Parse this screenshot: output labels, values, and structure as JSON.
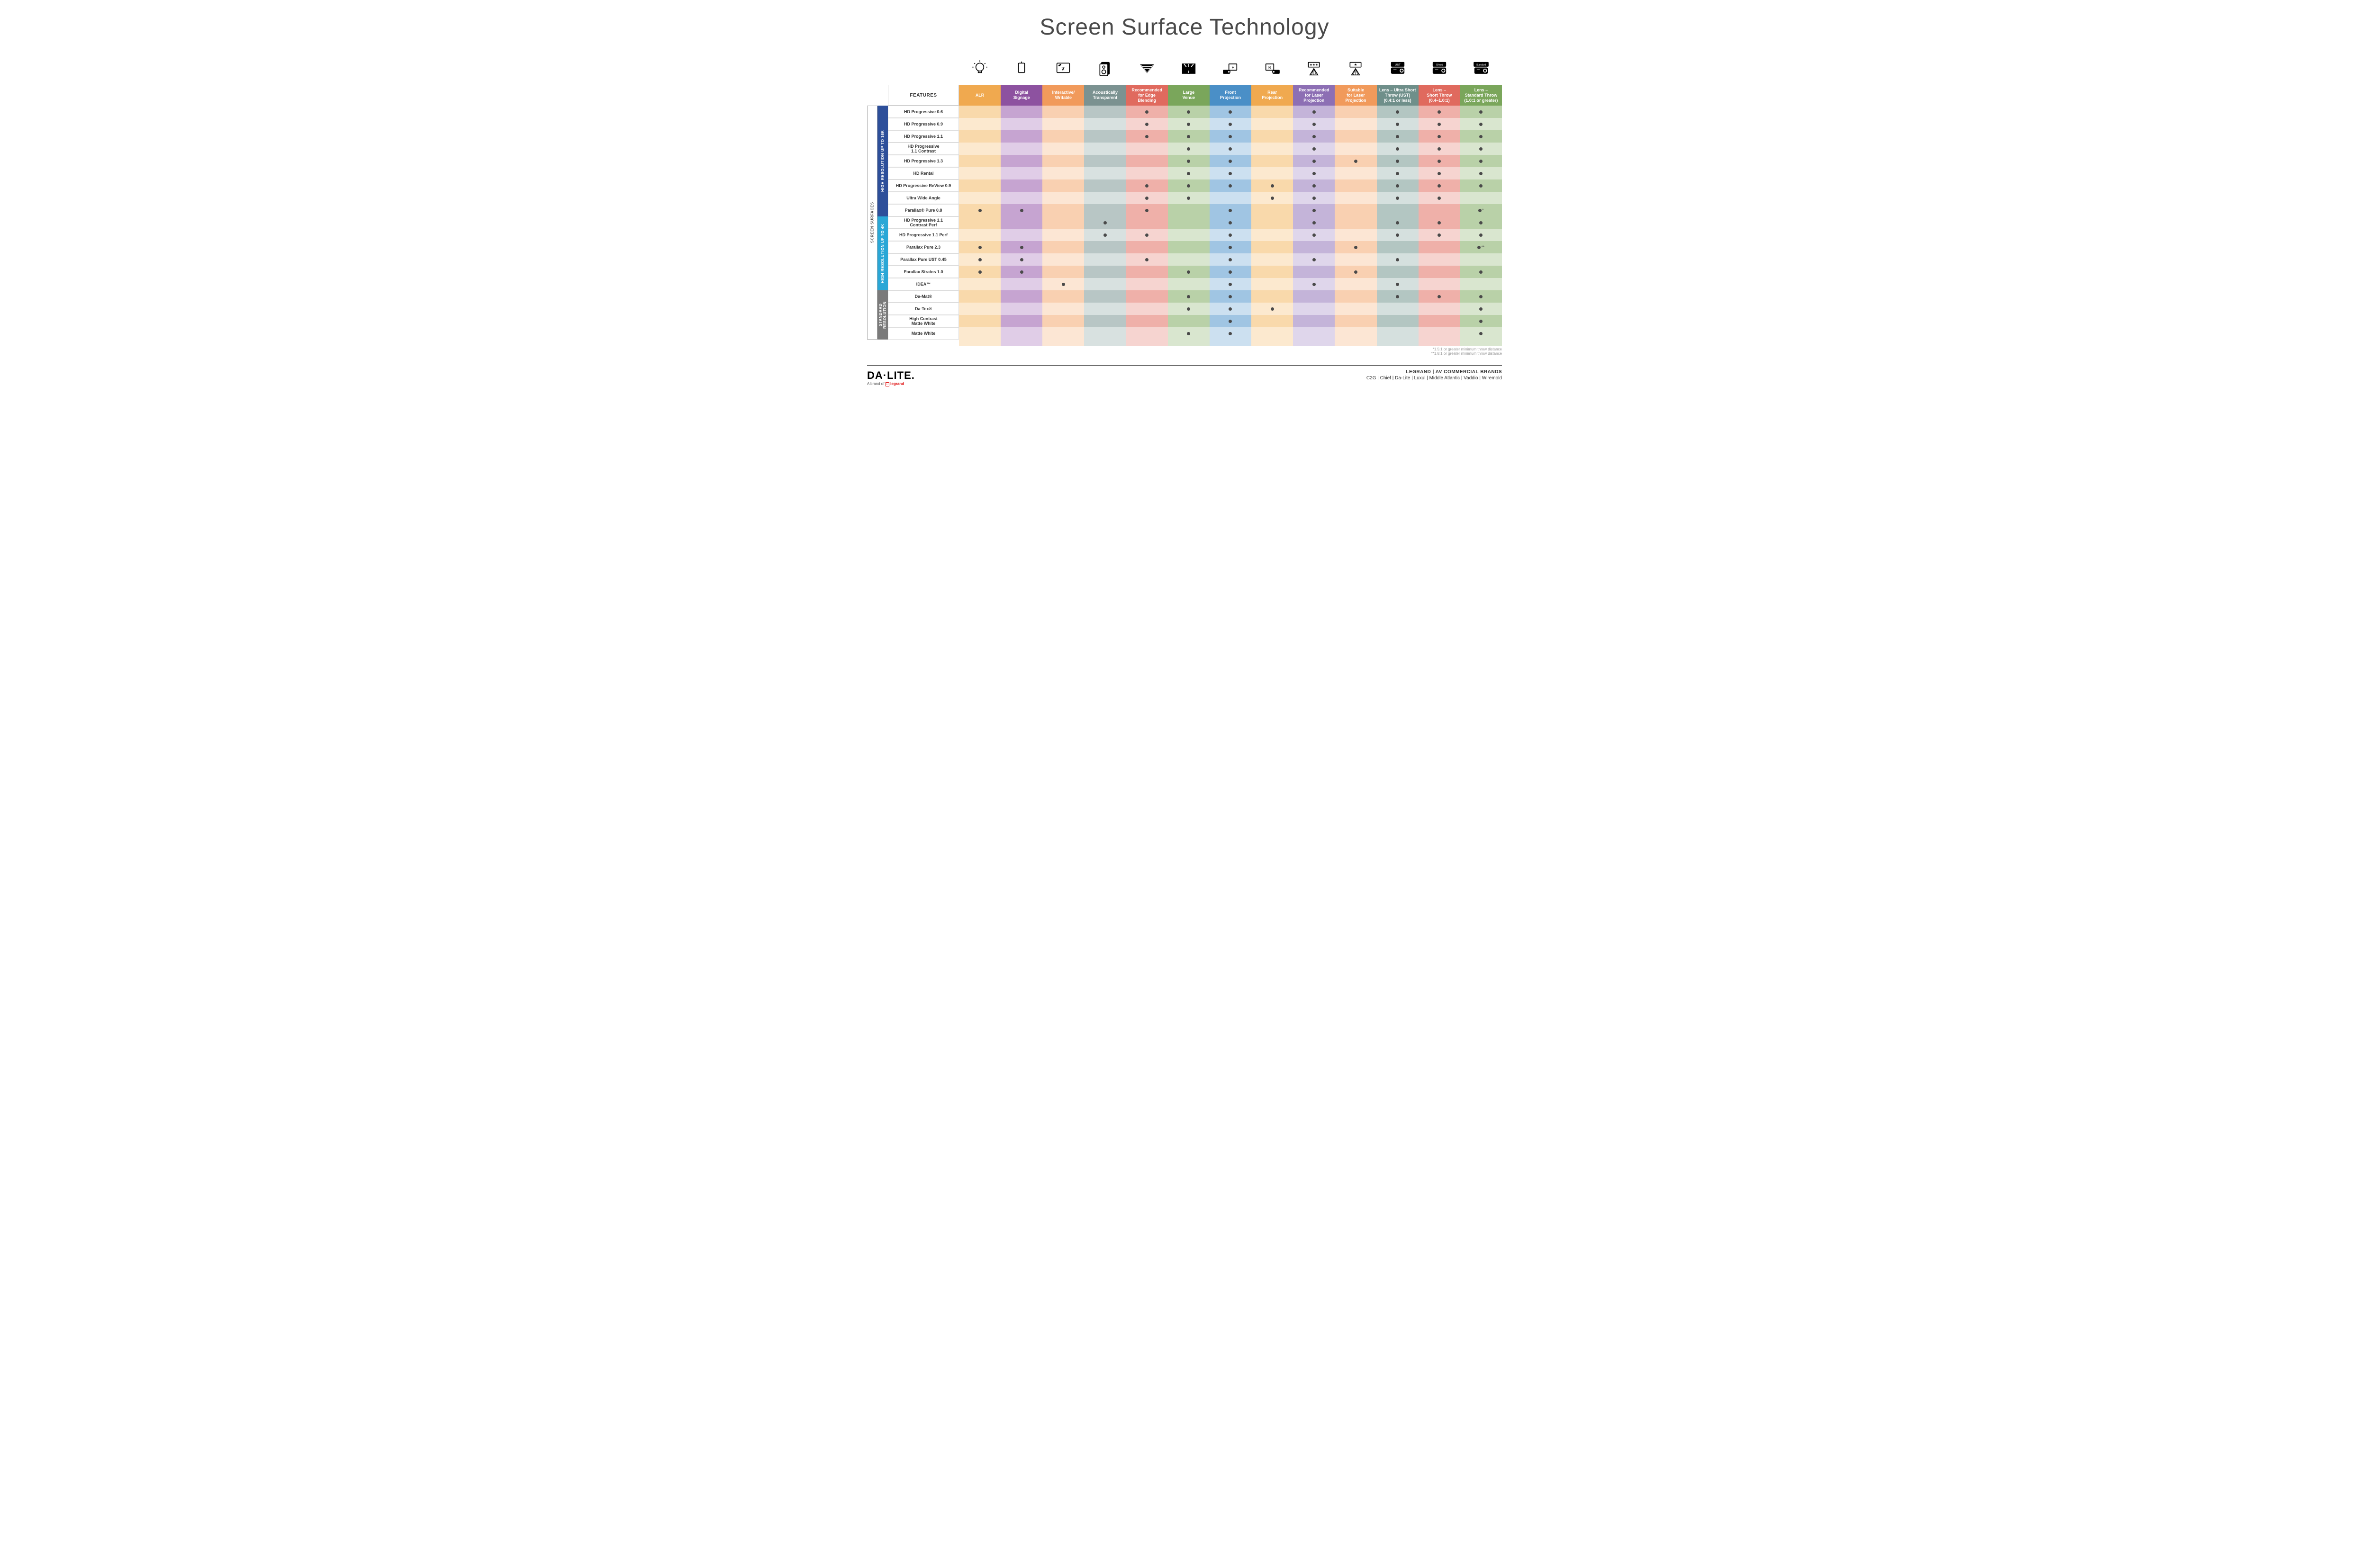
{
  "title": "Screen Surface Technology",
  "features_label": "FEATURES",
  "columns": [
    {
      "id": "alr",
      "label": "ALR",
      "color": "#f0a94f",
      "light": "#f9d9ab",
      "lighter": "#fce9cf"
    },
    {
      "id": "signage",
      "label": "Digital\nSignage",
      "color": "#8d52a0",
      "light": "#c6a4d1",
      "lighter": "#e0cde7"
    },
    {
      "id": "interactive",
      "label": "Interactive/\nWritable",
      "color": "#f19a5b",
      "light": "#f9d0b1",
      "lighter": "#fce6d4"
    },
    {
      "id": "acoustic",
      "label": "Acoustically\nTransparent",
      "color": "#7b9291",
      "light": "#b8c6c5",
      "lighter": "#d8e1e0"
    },
    {
      "id": "edge",
      "label": "Recommended\nfor Edge\nBlending",
      "color": "#e06a5e",
      "light": "#efb0a9",
      "lighter": "#f6d4d0"
    },
    {
      "id": "large",
      "label": "Large\nVenue",
      "color": "#7aa65b",
      "light": "#b9d1a8",
      "lighter": "#d9e6cf"
    },
    {
      "id": "front",
      "label": "Front\nProjection",
      "color": "#4a8fc7",
      "light": "#a0c5e3",
      "lighter": "#cce0f0"
    },
    {
      "id": "rear",
      "label": "Rear\nProjection",
      "color": "#f0a94f",
      "light": "#f9d9ab",
      "lighter": "#fce9cf"
    },
    {
      "id": "reclaser",
      "label": "Recommended\nfor Laser\nProjection",
      "color": "#8d6fb4",
      "light": "#c4b4d9",
      "lighter": "#dfd6eb"
    },
    {
      "id": "suitlaser",
      "label": "Suitable\nfor Laser\nProjection",
      "color": "#f19a5b",
      "light": "#f9d0b1",
      "lighter": "#fce6d4"
    },
    {
      "id": "ust",
      "label": "Lens – Ultra Short\nThrow (UST)\n(0.4:1 or less)",
      "color": "#6f8f8a",
      "light": "#b3c6c2",
      "lighter": "#d5e0de"
    },
    {
      "id": "short",
      "label": "Lens –\nShort Throw\n(0.4–1.0:1)",
      "color": "#e06a5e",
      "light": "#efb0a9",
      "lighter": "#f6d4d0"
    },
    {
      "id": "std",
      "label": "Lens –\nStandard Throw\n(1.0:1 or greater)",
      "color": "#7aa65b",
      "light": "#b9d1a8",
      "lighter": "#d9e6cf"
    }
  ],
  "side_outer": {
    "label": "SCREEN SURFACES",
    "color": "#ffffff",
    "text": "#555",
    "border": "#aaa"
  },
  "groups": [
    {
      "id": "g16k",
      "label": "HIGH RESOLUTION UP TO 16K",
      "color": "#2d4f9a",
      "rows": [
        {
          "name": "HD Progressive 0.6",
          "marks": {
            "edge": "•",
            "large": "•",
            "front": "•",
            "reclaser": "•",
            "ust": "•",
            "short": "•",
            "std": "•"
          }
        },
        {
          "name": "HD Progressive 0.9",
          "marks": {
            "edge": "•",
            "large": "•",
            "front": "•",
            "reclaser": "•",
            "ust": "•",
            "short": "•",
            "std": "•"
          }
        },
        {
          "name": "HD Progressive 1.1",
          "marks": {
            "edge": "•",
            "large": "•",
            "front": "•",
            "reclaser": "•",
            "ust": "•",
            "short": "•",
            "std": "•"
          }
        },
        {
          "name": "HD Progressive\n1.1 Contrast",
          "marks": {
            "large": "•",
            "front": "•",
            "reclaser": "•",
            "ust": "•",
            "short": "•",
            "std": "•"
          }
        },
        {
          "name": "HD Progressive 1.3",
          "marks": {
            "large": "•",
            "front": "•",
            "reclaser": "•",
            "suitlaser": "•",
            "ust": "•",
            "short": "•",
            "std": "•"
          }
        },
        {
          "name": "HD Rental",
          "marks": {
            "large": "•",
            "front": "•",
            "reclaser": "•",
            "ust": "•",
            "short": "•",
            "std": "•"
          }
        },
        {
          "name": "HD Progressive ReView 0.9",
          "marks": {
            "edge": "•",
            "large": "•",
            "front": "•",
            "rear": "•",
            "reclaser": "•",
            "ust": "•",
            "short": "•",
            "std": "•"
          }
        },
        {
          "name": "Ultra Wide Angle",
          "marks": {
            "edge": "•",
            "large": "•",
            "rear": "•",
            "reclaser": "•",
            "ust": "•",
            "short": "•"
          }
        },
        {
          "name": "Parallax® Pure 0.8",
          "marks": {
            "alr": "•",
            "signage": "•",
            "edge": "•",
            "front": "•",
            "reclaser": "•",
            "std": "•*"
          }
        }
      ]
    },
    {
      "id": "g4k",
      "label": "HIGH RESOLUTION UP TO 4K",
      "color": "#2aa7d6",
      "rows": [
        {
          "name": "HD Progressive 1.1\nContrast Perf",
          "marks": {
            "acoustic": "•",
            "front": "•",
            "reclaser": "•",
            "ust": "•",
            "short": "•",
            "std": "•"
          }
        },
        {
          "name": "HD Progressive 1.1 Perf",
          "marks": {
            "acoustic": "•",
            "edge": "•",
            "front": "•",
            "reclaser": "•",
            "ust": "•",
            "short": "•",
            "std": "•"
          }
        },
        {
          "name": "Parallax Pure 2.3",
          "marks": {
            "alr": "•",
            "signage": "•",
            "front": "•",
            "suitlaser": "•",
            "std": "•**"
          }
        },
        {
          "name": "Parallax Pure UST 0.45",
          "marks": {
            "alr": "•",
            "signage": "•",
            "edge": "•",
            "front": "•",
            "reclaser": "•",
            "ust": "•"
          }
        },
        {
          "name": "Parallax Stratos 1.0",
          "marks": {
            "alr": "•",
            "signage": "•",
            "large": "•",
            "front": "•",
            "suitlaser": "•",
            "std": "•"
          }
        },
        {
          "name": "IDEA™",
          "marks": {
            "interactive": "•",
            "front": "•",
            "reclaser": "•",
            "ust": "•"
          }
        }
      ]
    },
    {
      "id": "gstd",
      "label": "STANDARD\nRESOLUTION",
      "color": "#7a7a7a",
      "rows": [
        {
          "name": "Da-Mat®",
          "marks": {
            "large": "•",
            "front": "•",
            "ust": "•",
            "short": "•",
            "std": "•"
          }
        },
        {
          "name": "Da-Tex®",
          "marks": {
            "large": "•",
            "front": "•",
            "rear": "•",
            "std": "•"
          }
        },
        {
          "name": "High Contrast\nMatte White",
          "marks": {
            "front": "•",
            "std": "•"
          }
        },
        {
          "name": "Matte White",
          "marks": {
            "large": "•",
            "front": "•",
            "std": "•"
          }
        }
      ]
    }
  ],
  "footnotes": [
    "*1.5:1 or greater minimum throw distance",
    "**1.8:1 or greater minimum throw distance"
  ],
  "footer": {
    "logo": "DA·LITE.",
    "logo_sub_prefix": "A brand of ",
    "logo_sub_brand": "legrand",
    "brands_title": "LEGRAND | AV COMMERCIAL BRANDS",
    "brands_list": "C2G  |  Chief  |  Da-Lite  |  Luxul  |  Middle Atlantic  |  Vaddio  |  Wiremold"
  },
  "icons": {
    "alr": "bulb",
    "signage": "signage",
    "interactive": "touch",
    "acoustic": "speaker",
    "edge": "blend",
    "large": "venue",
    "front": "front",
    "rear": "rear",
    "reclaser": "laser3",
    "suitlaser": "laser1",
    "ust": "proj-ust",
    "short": "proj-short",
    "std": "proj-std"
  }
}
